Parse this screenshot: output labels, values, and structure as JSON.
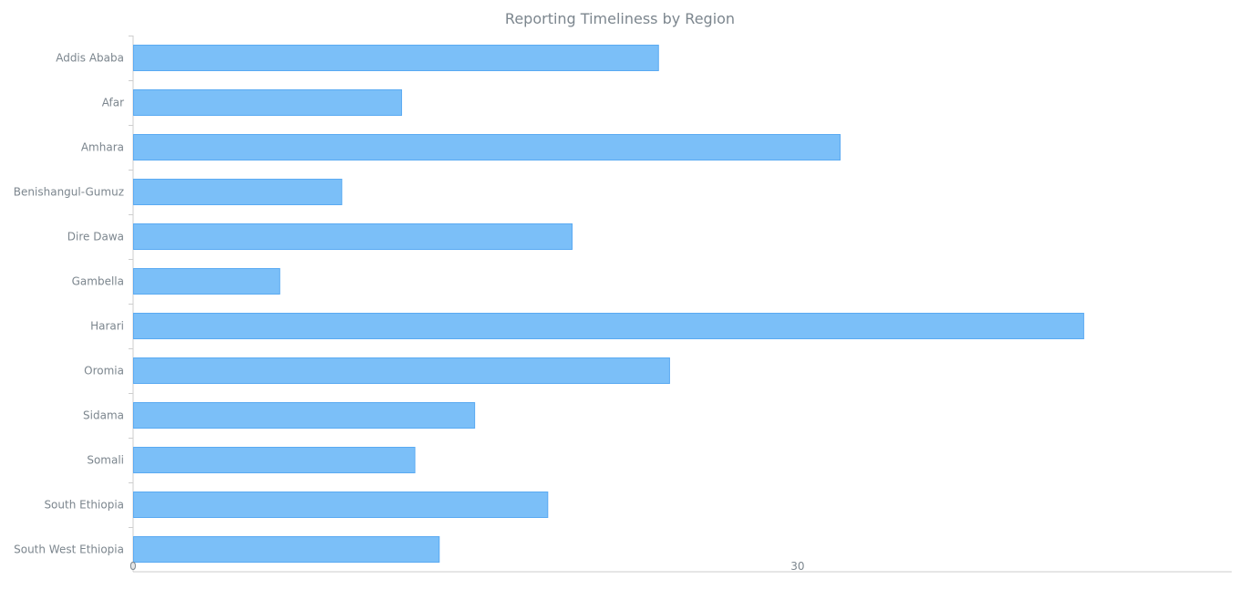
{
  "chart_data": {
    "type": "bar",
    "orientation": "horizontal",
    "title": "Reporting Timeliness by Region",
    "xlabel": "",
    "ylabel": "",
    "categories": [
      "Addis Ababa",
      "Afar",
      "Amhara",
      "Benishangul-Gumuz",
      "Dire Dawa",
      "Gambella",
      "Harari",
      "Oromia",
      "Sidama",
      "Somali",
      "South Ethiopia",
      "South West Ethiopia"
    ],
    "values": [
      23.7,
      12.1,
      31.9,
      9.4,
      19.8,
      6.6,
      42.9,
      24.2,
      15.4,
      12.7,
      18.7,
      13.8
    ],
    "xlim": [
      0,
      49.6
    ],
    "xticks": [
      0,
      30
    ],
    "grid": false,
    "legend": "none",
    "colors": {
      "bar_fill": "#7bbff8",
      "bar_stroke": "#5aaaf2",
      "text": "#7c868e",
      "axis": "#cecece"
    }
  }
}
